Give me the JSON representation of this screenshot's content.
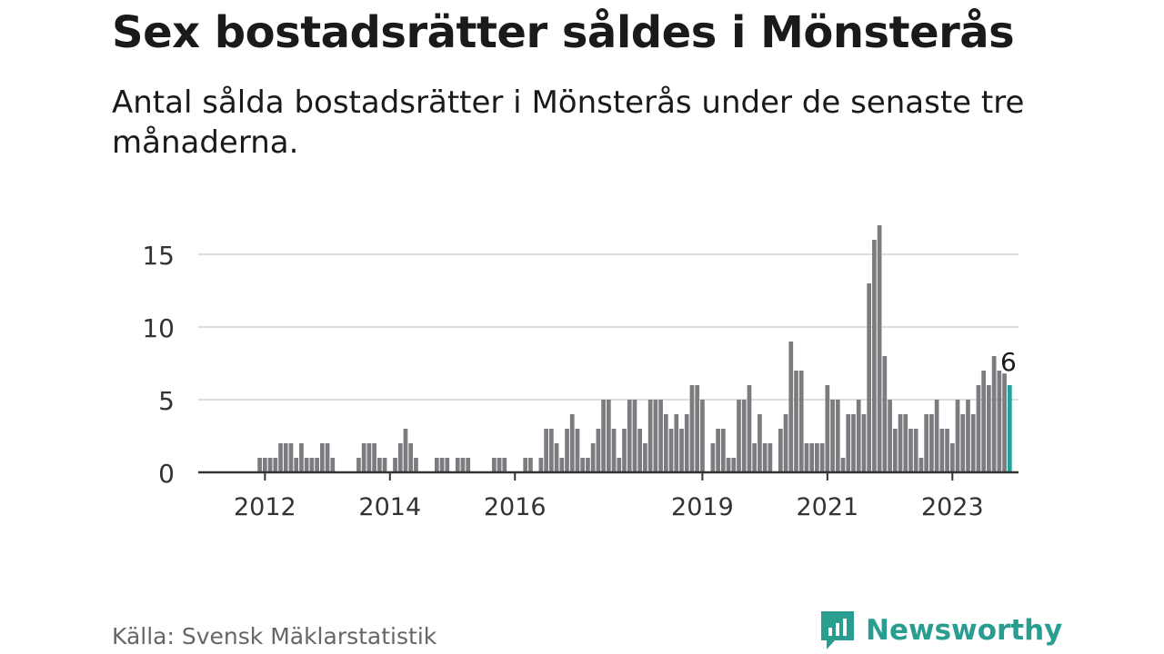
{
  "title": "Sex bostadsrätter såldes i Mönsterås",
  "subtitle": "Antal sålda bostadsrätter i Mönsterås under de senaste tre månaderna.",
  "source": "Källa: Svensk Mäklarstatistik",
  "brand": "Newsworthy",
  "colors": {
    "bar": "#7b7b80",
    "highlight": "#1fa39a",
    "grid": "#dddddd",
    "axis": "#333333",
    "brand": "#2a9d91"
  },
  "chart_data": {
    "type": "bar",
    "title": "Sex bostadsrätter såldes i Mönsterås",
    "xlabel": "",
    "ylabel": "",
    "ylim": [
      0,
      17
    ],
    "yticks": [
      0,
      5,
      10,
      15
    ],
    "grid": true,
    "x_tick_labels": [
      "2012",
      "2014",
      "2016",
      "2019",
      "2021",
      "2023"
    ],
    "x_tick_months": [
      "2012-01",
      "2014-01",
      "2016-01",
      "2019-01",
      "2021-01",
      "2023-01"
    ],
    "start_month": "2011-02",
    "highlight_label": "6",
    "values": [
      0,
      0,
      0,
      0,
      0,
      0,
      0,
      0,
      0,
      0,
      1,
      1,
      1,
      1,
      2,
      2,
      2,
      1,
      2,
      1,
      1,
      1,
      2,
      2,
      1,
      0,
      0,
      0,
      0,
      1,
      2,
      2,
      2,
      1,
      1,
      0,
      1,
      2,
      3,
      2,
      1,
      0,
      0,
      0,
      1,
      1,
      1,
      0,
      1,
      1,
      1,
      0,
      0,
      0,
      0,
      1,
      1,
      1,
      0,
      0,
      0,
      1,
      1,
      0,
      1,
      3,
      3,
      2,
      1,
      3,
      4,
      3,
      1,
      1,
      2,
      3,
      5,
      5,
      3,
      1,
      3,
      5,
      5,
      3,
      2,
      5,
      5,
      5,
      4,
      3,
      4,
      3,
      4,
      6,
      6,
      5,
      0,
      2,
      3,
      3,
      1,
      1,
      5,
      5,
      6,
      2,
      4,
      2,
      2,
      0,
      3,
      4,
      9,
      7,
      7,
      2,
      2,
      2,
      2,
      6,
      5,
      5,
      1,
      4,
      4,
      5,
      4,
      13,
      16,
      17,
      8,
      5,
      3,
      4,
      4,
      3,
      3,
      1,
      4,
      4,
      5,
      3,
      3,
      2,
      5,
      4,
      5,
      4,
      6,
      7,
      6,
      8,
      7,
      6.8,
      6
    ],
    "last_value": 6
  }
}
